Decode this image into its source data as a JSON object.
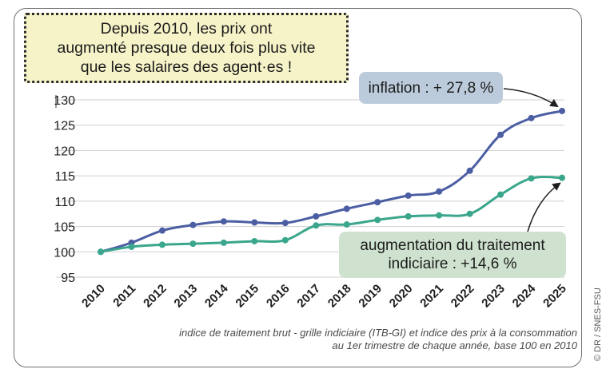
{
  "title_lines": [
    "Depuis 2010, les prix ont",
    "augmenté presque deux fois plus vite",
    "que les salaires des agent·es !"
  ],
  "annotations": {
    "inflation": "inflation : + 27,8 %",
    "salary_line1": "augmentation du traitement",
    "salary_line2": "indiciaire : +14,6 %"
  },
  "source_lines": [
    "indice de traitement brut - grille indiciaire (ITB-GI) et indice des prix à la consommation",
    "au 1er trimestre de chaque année, base 100 en 2010"
  ],
  "credit": "© DR / SNES-FSU",
  "chart_data": {
    "type": "line",
    "x": [
      "2010",
      "2011",
      "2012",
      "2013",
      "2014",
      "2015",
      "2016",
      "2017",
      "2018",
      "2019",
      "2020",
      "2021",
      "2022",
      "2023",
      "2024",
      "2025"
    ],
    "series": [
      {
        "values": [
          100,
          101.8,
          104.2,
          105.3,
          106.0,
          105.8,
          105.7,
          107.0,
          108.5,
          109.8,
          111.1,
          111.9,
          116.0,
          123.1,
          126.4,
          127.8
        ],
        "color": "#4c5ea3"
      },
      {
        "values": [
          100,
          101.0,
          101.4,
          101.6,
          101.8,
          102.1,
          102.3,
          105.2,
          105.4,
          106.3,
          107.0,
          107.2,
          107.5,
          111.3,
          114.5,
          114.6
        ],
        "color": "#3aa68c"
      }
    ],
    "yticks": [
      95,
      100,
      105,
      110,
      115,
      120,
      125,
      130
    ],
    "ylim": [
      95,
      130
    ],
    "grid": true,
    "legend": "none"
  }
}
